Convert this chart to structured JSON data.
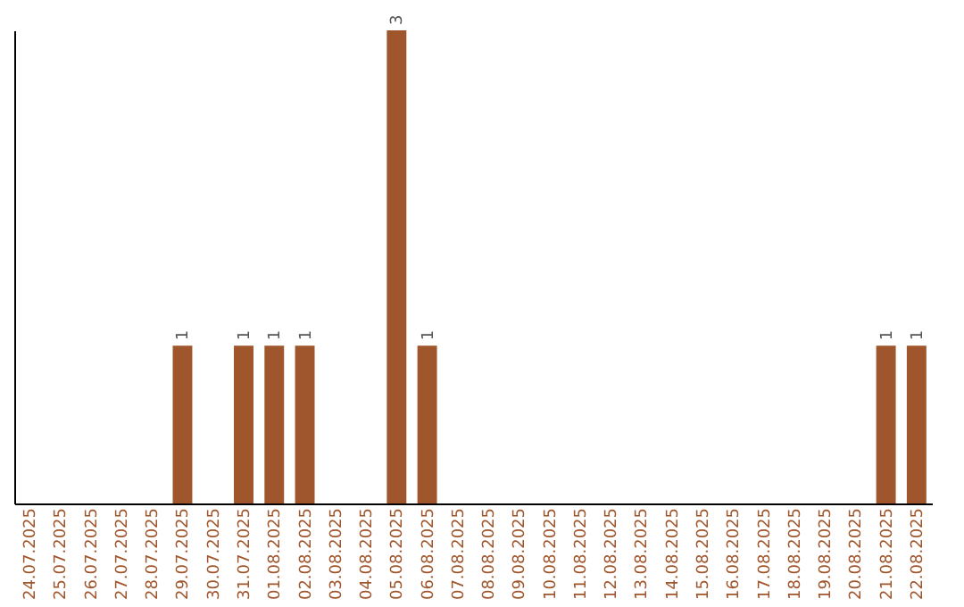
{
  "chart_data": {
    "type": "bar",
    "categories": [
      "24.07.2025",
      "25.07.2025",
      "26.07.2025",
      "27.07.2025",
      "28.07.2025",
      "29.07.2025",
      "30.07.2025",
      "31.07.2025",
      "01.08.2025",
      "02.08.2025",
      "03.08.2025",
      "04.08.2025",
      "05.08.2025",
      "06.08.2025",
      "07.08.2025",
      "08.08.2025",
      "09.08.2025",
      "10.08.2025",
      "11.08.2025",
      "12.08.2025",
      "13.08.2025",
      "14.08.2025",
      "15.08.2025",
      "16.08.2025",
      "17.08.2025",
      "18.08.2025",
      "19.08.2025",
      "20.08.2025",
      "21.08.2025",
      "22.08.2025"
    ],
    "values": [
      0,
      0,
      0,
      0,
      0,
      1,
      0,
      1,
      1,
      1,
      0,
      0,
      3,
      1,
      0,
      0,
      0,
      0,
      0,
      0,
      0,
      0,
      0,
      0,
      0,
      0,
      0,
      0,
      1,
      1
    ],
    "value_labels": [
      null,
      null,
      null,
      null,
      null,
      "1",
      null,
      "1",
      "1",
      "1",
      null,
      null,
      "3",
      "1",
      null,
      null,
      null,
      null,
      null,
      null,
      null,
      null,
      null,
      null,
      null,
      null,
      null,
      null,
      "1",
      "1"
    ],
    "color": "#a0562c",
    "tick_labels": "x",
    "grid": false
  }
}
